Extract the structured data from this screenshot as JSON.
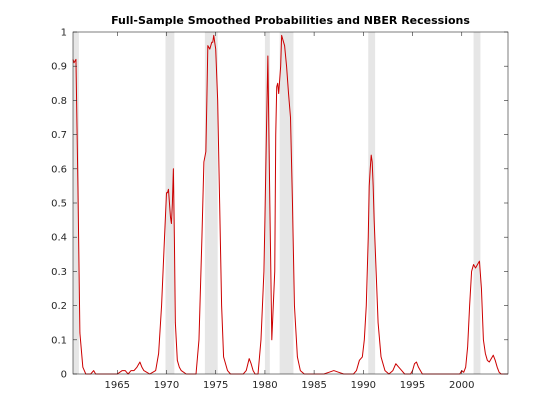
{
  "chart_data": {
    "type": "line",
    "title": "Full-Sample Smoothed Probabilities and NBER Recessions",
    "xlabel": "",
    "ylabel": "",
    "xlim": [
      1960.5,
      2004.7
    ],
    "ylim": [
      0,
      1
    ],
    "x_ticks": [
      1965,
      1970,
      1975,
      1980,
      1985,
      1990,
      1995,
      2000
    ],
    "y_ticks": [
      0,
      0.1,
      0.2,
      0.3,
      0.4,
      0.5,
      0.6,
      0.7,
      0.8,
      0.9,
      1
    ],
    "grid": false,
    "legend": "none",
    "recession_bands": [
      [
        1960.5,
        1961.1
      ],
      [
        1969.9,
        1970.8
      ],
      [
        1973.9,
        1975.2
      ],
      [
        1980.0,
        1980.5
      ],
      [
        1981.5,
        1982.9
      ],
      [
        1990.5,
        1991.2
      ],
      [
        2001.2,
        2001.9
      ]
    ],
    "series": [
      {
        "x": [
          1960.5,
          1960.6,
          1960.8,
          1961.0,
          1961.2,
          1961.5,
          1961.8,
          1962.0,
          1962.3,
          1962.6,
          1962.8,
          1963.2,
          1963.6,
          1964.0,
          1964.5,
          1965.0,
          1965.5,
          1965.8,
          1966.1,
          1966.4,
          1966.7,
          1967.0,
          1967.3,
          1967.5,
          1967.7,
          1968.0,
          1968.3,
          1968.6,
          1968.9,
          1969.2,
          1969.5,
          1969.8,
          1970.0,
          1970.1,
          1970.2,
          1970.3,
          1970.4,
          1970.5,
          1970.6,
          1970.7,
          1970.8,
          1970.9,
          1971.1,
          1971.3,
          1971.5,
          1972.0,
          1972.5,
          1973.0,
          1973.3,
          1973.6,
          1973.8,
          1974.0,
          1974.1,
          1974.2,
          1974.4,
          1974.6,
          1974.7,
          1974.8,
          1974.9,
          1975.0,
          1975.2,
          1975.4,
          1975.6,
          1975.8,
          1976.2,
          1976.5,
          1976.8,
          1977.1,
          1977.4,
          1977.6,
          1977.8,
          1978.1,
          1978.4,
          1978.6,
          1978.8,
          1979.0,
          1979.3,
          1979.6,
          1979.9,
          1980.0,
          1980.15,
          1980.3,
          1980.5,
          1980.7,
          1981.0,
          1981.1,
          1981.2,
          1981.3,
          1981.4,
          1981.5,
          1981.6,
          1981.7,
          1981.8,
          1981.9,
          1982.0,
          1982.2,
          1982.4,
          1982.6,
          1982.8,
          1983.0,
          1983.3,
          1983.6,
          1984.0,
          1984.5,
          1985.0,
          1985.5,
          1986.0,
          1986.5,
          1987.0,
          1987.5,
          1988.0,
          1988.5,
          1989.0,
          1989.3,
          1989.6,
          1989.9,
          1990.1,
          1990.3,
          1990.5,
          1990.6,
          1990.7,
          1990.8,
          1990.9,
          1991.0,
          1991.1,
          1991.3,
          1991.5,
          1991.8,
          1992.2,
          1992.6,
          1993.0,
          1993.3,
          1993.6,
          1993.9,
          1994.2,
          1994.5,
          1994.8,
          1995.0,
          1995.2,
          1995.4,
          1995.6,
          1995.8,
          1996.0,
          1996.3,
          1996.6,
          1997.0,
          1997.5,
          1998.0,
          1998.5,
          1999.0,
          1999.5,
          1999.8,
          2000.0,
          2000.2,
          2000.4,
          2000.6,
          2000.8,
          2001.0,
          2001.2,
          2001.4,
          2001.6,
          2001.8,
          2002.0,
          2002.2,
          2002.4,
          2002.6,
          2002.8,
          2003.0,
          2003.2,
          2003.4,
          2003.6,
          2003.8,
          2004.0,
          2004.3,
          2004.7
        ],
        "y": [
          0.92,
          0.91,
          0.92,
          0.55,
          0.12,
          0.02,
          0.0,
          0.0,
          0.0,
          0.01,
          0.0,
          0.0,
          0.0,
          0.0,
          0.0,
          0.0,
          0.01,
          0.01,
          0.0,
          0.01,
          0.01,
          0.02,
          0.035,
          0.02,
          0.01,
          0.005,
          0.0,
          0.005,
          0.01,
          0.06,
          0.2,
          0.4,
          0.53,
          0.53,
          0.54,
          0.5,
          0.46,
          0.44,
          0.5,
          0.6,
          0.4,
          0.15,
          0.04,
          0.02,
          0.01,
          0.0,
          0.0,
          0.0,
          0.1,
          0.4,
          0.62,
          0.65,
          0.8,
          0.96,
          0.95,
          0.97,
          0.97,
          0.99,
          0.97,
          0.95,
          0.8,
          0.5,
          0.2,
          0.05,
          0.01,
          0.0,
          0.0,
          0.0,
          0.0,
          0.0,
          0.0,
          0.01,
          0.045,
          0.03,
          0.01,
          0.0,
          0.0,
          0.1,
          0.3,
          0.45,
          0.7,
          0.93,
          0.5,
          0.1,
          0.3,
          0.7,
          0.84,
          0.85,
          0.82,
          0.86,
          0.9,
          0.99,
          0.98,
          0.97,
          0.96,
          0.9,
          0.82,
          0.75,
          0.5,
          0.2,
          0.05,
          0.01,
          0.0,
          0.0,
          0.0,
          0.0,
          0.0,
          0.005,
          0.01,
          0.005,
          0.0,
          0.0,
          0.0,
          0.01,
          0.04,
          0.05,
          0.1,
          0.2,
          0.4,
          0.55,
          0.6,
          0.64,
          0.62,
          0.55,
          0.45,
          0.3,
          0.15,
          0.05,
          0.01,
          0.0,
          0.01,
          0.03,
          0.02,
          0.01,
          0.0,
          0.0,
          0.0,
          0.01,
          0.03,
          0.035,
          0.02,
          0.01,
          0.0,
          0.0,
          0.0,
          0.0,
          0.0,
          0.0,
          0.0,
          0.0,
          0.0,
          0.0,
          0.01,
          0.005,
          0.02,
          0.08,
          0.2,
          0.3,
          0.32,
          0.31,
          0.32,
          0.33,
          0.25,
          0.1,
          0.06,
          0.04,
          0.035,
          0.045,
          0.055,
          0.04,
          0.02,
          0.005,
          0.0,
          0.0,
          0.0
        ]
      }
    ],
    "colors": {
      "line": "#cc0000",
      "band": "#e6e6e6",
      "axis": "#262626",
      "background": "#ffffff"
    }
  }
}
